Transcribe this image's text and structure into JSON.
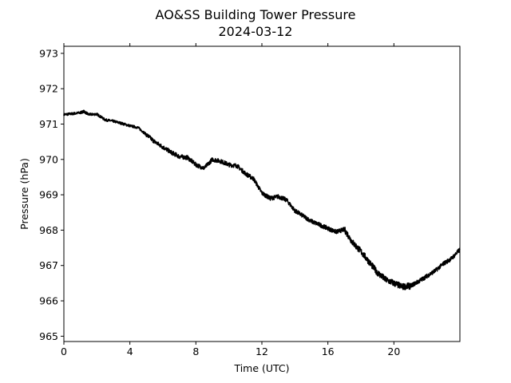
{
  "chart_data": {
    "type": "line",
    "title": "AO&SS Building Tower Pressure",
    "subtitle": "2024-03-12",
    "xlabel": "Time (UTC)",
    "ylabel": "Pressure (hPa)",
    "xlim": [
      0,
      24
    ],
    "ylim": [
      964.85,
      973.2
    ],
    "x_ticks": [
      0,
      4,
      8,
      12,
      16,
      20
    ],
    "x_tick_labels": [
      "0",
      "4",
      "8",
      "12",
      "16",
      "20"
    ],
    "y_ticks": [
      965,
      966,
      967,
      968,
      969,
      970,
      971,
      972,
      973
    ],
    "y_tick_labels": [
      "965",
      "966",
      "967",
      "968",
      "969",
      "970",
      "971",
      "972",
      "973"
    ],
    "grid": false,
    "series": [
      {
        "color": "#000000",
        "x": [
          0,
          0.5,
          1.0,
          1.2,
          1.5,
          2.0,
          2.5,
          3.0,
          3.5,
          4.0,
          4.5,
          5.0,
          5.5,
          6.0,
          6.5,
          7.0,
          7.5,
          8.0,
          8.5,
          9.0,
          9.5,
          10.0,
          10.5,
          11.0,
          11.5,
          12.0,
          12.5,
          13.0,
          13.5,
          14.0,
          14.5,
          15.0,
          15.5,
          16.0,
          16.5,
          17.0,
          17.5,
          18.0,
          18.5,
          19.0,
          19.5,
          20.0,
          20.5,
          21.0,
          21.5,
          22.0,
          22.5,
          23.0,
          23.5,
          24.0
        ],
        "y": [
          971.27,
          971.29,
          971.32,
          971.36,
          971.27,
          971.28,
          971.12,
          971.08,
          971.02,
          970.95,
          970.9,
          970.7,
          970.5,
          970.35,
          970.2,
          970.08,
          970.05,
          969.85,
          969.75,
          970.0,
          969.95,
          969.85,
          969.82,
          969.6,
          969.45,
          969.05,
          968.9,
          968.95,
          968.85,
          968.55,
          968.4,
          968.25,
          968.15,
          968.05,
          967.95,
          968.02,
          967.65,
          967.4,
          967.1,
          966.8,
          966.6,
          966.5,
          966.4,
          966.42,
          966.55,
          966.7,
          966.85,
          967.05,
          967.2,
          967.45
        ]
      }
    ]
  }
}
